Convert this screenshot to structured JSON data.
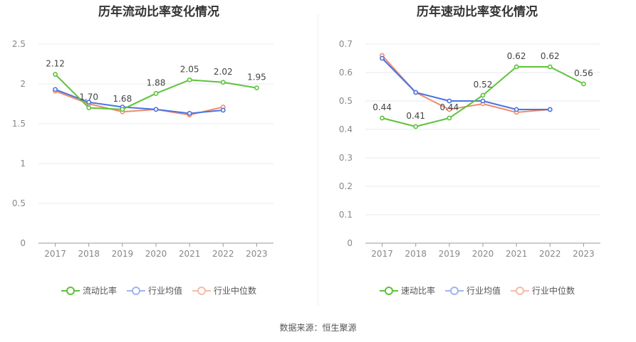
{
  "source_label": "数据来源：恒生聚源",
  "colors": {
    "green": "#5dc33a",
    "blue": "#4a74e0",
    "orange": "#f08a6c"
  },
  "chart_data": [
    {
      "type": "line",
      "title": "历年流动比率变化情况",
      "categories": [
        "2017",
        "2018",
        "2019",
        "2020",
        "2021",
        "2022",
        "2023"
      ],
      "ylim": [
        0,
        2.5
      ],
      "yticks": [
        "0",
        "0.5",
        "1",
        "1.5",
        "2",
        "2.5"
      ],
      "grid": true,
      "legend_position": "bottom",
      "series": [
        {
          "name": "流动比率",
          "color": "#5dc33a",
          "values": [
            2.12,
            1.7,
            1.68,
            1.88,
            2.05,
            2.02,
            1.95
          ],
          "labels": [
            "2.12",
            "1.70",
            "1.68",
            "1.88",
            "2.05",
            "2.02",
            "1.95"
          ]
        },
        {
          "name": "行业均值",
          "color": "#4a74e0",
          "values": [
            1.93,
            1.77,
            1.71,
            1.68,
            1.63,
            1.67,
            null
          ]
        },
        {
          "name": "行业中位数",
          "color": "#f08a6c",
          "values": [
            1.91,
            1.75,
            1.65,
            1.68,
            1.61,
            1.71,
            null
          ]
        }
      ]
    },
    {
      "type": "line",
      "title": "历年速动比率变化情况",
      "categories": [
        "2017",
        "2018",
        "2019",
        "2020",
        "2021",
        "2022",
        "2023"
      ],
      "ylim": [
        0,
        0.7
      ],
      "yticks": [
        "0",
        "0.1",
        "0.2",
        "0.3",
        "0.4",
        "0.5",
        "0.6",
        "0.7"
      ],
      "grid": true,
      "legend_position": "bottom",
      "series": [
        {
          "name": "速动比率",
          "color": "#5dc33a",
          "values": [
            0.44,
            0.41,
            0.44,
            0.52,
            0.62,
            0.62,
            0.56
          ],
          "labels": [
            "0.44",
            "0.41",
            "0.44",
            "0.52",
            "0.62",
            "0.62",
            "0.56"
          ]
        },
        {
          "name": "行业均值",
          "color": "#4a74e0",
          "values": [
            0.65,
            0.53,
            0.5,
            0.5,
            0.47,
            0.47,
            null
          ]
        },
        {
          "name": "行业中位数",
          "color": "#f08a6c",
          "values": [
            0.66,
            0.53,
            0.47,
            0.49,
            0.46,
            0.47,
            null
          ]
        }
      ]
    }
  ]
}
